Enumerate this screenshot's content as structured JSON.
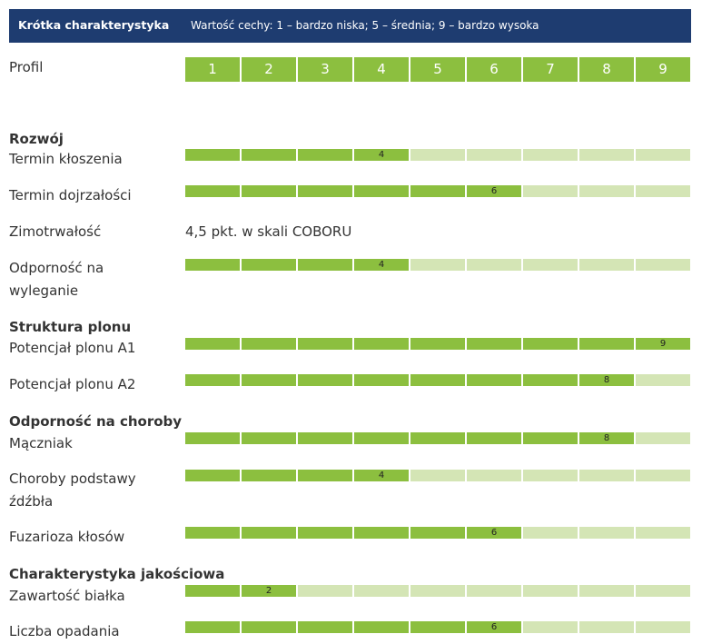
{
  "header": {
    "title": "Krótka charakterystyka",
    "legend": "Wartość cechy: 1 – bardzo niska; 5 – średnia; 9 – bardzo wysoka"
  },
  "profile": {
    "label": "Profil",
    "scale": [
      "1",
      "2",
      "3",
      "4",
      "5",
      "6",
      "7",
      "8",
      "9"
    ]
  },
  "colors": {
    "header_bg": "#1e3c70",
    "filled": "#8cbf3f",
    "empty": "#d4e5b5"
  },
  "chart_data": {
    "type": "bar",
    "xlim": [
      0,
      9
    ],
    "sections": [
      {
        "title": "Rozwój",
        "rows": [
          {
            "label": [
              "Termin kłoszenia"
            ],
            "value": 4
          },
          {
            "label": [
              "Termin dojrzałości"
            ],
            "value": 6
          },
          {
            "label": [
              "Zimotrwałość"
            ],
            "text": "4,5 pkt. w skali COBORU"
          },
          {
            "label": [
              "Odporność na",
              "wyleganie"
            ],
            "value": 4
          }
        ]
      },
      {
        "title": "Struktura plonu",
        "rows": [
          {
            "label": [
              "Potencjał plonu A1"
            ],
            "value": 9
          },
          {
            "label": [
              "Potencjał plonu A2"
            ],
            "value": 8
          }
        ]
      },
      {
        "title": "Odporność na choroby",
        "rows": [
          {
            "label": [
              "Mączniak"
            ],
            "value": 8
          },
          {
            "label": [
              "Choroby podstawy",
              "źdźbła"
            ],
            "value": 4
          },
          {
            "label": [
              "Fuzarioza kłosów"
            ],
            "value": 6
          }
        ]
      },
      {
        "title": "Charakterystyka jakościowa",
        "rows": [
          {
            "label": [
              "Zawartość białka"
            ],
            "value": 2
          },
          {
            "label": [
              "Liczba opadania"
            ],
            "value": 6
          }
        ]
      }
    ]
  }
}
